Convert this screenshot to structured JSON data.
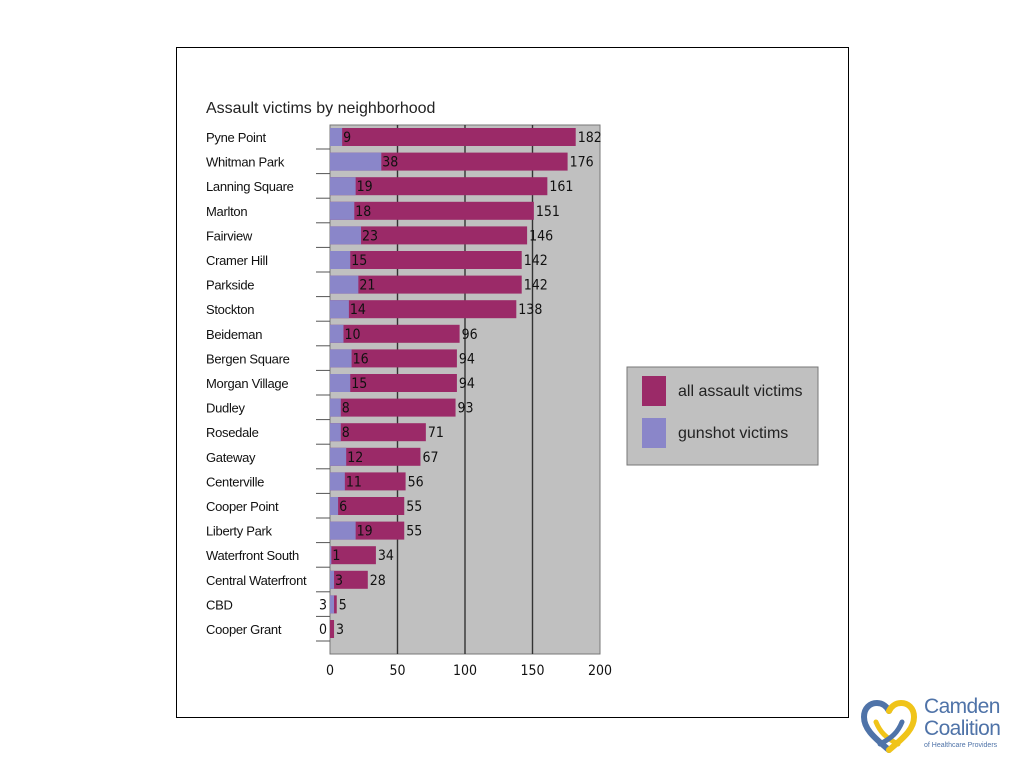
{
  "chart_data": {
    "type": "bar",
    "orientation": "horizontal",
    "title": "Assault victims by neighborhood",
    "categories": [
      "Pyne Point",
      "Whitman Park",
      "Lanning Square",
      "Marlton",
      "Fairview",
      "Cramer Hill",
      "Parkside",
      "Stockton",
      "Beideman",
      "Bergen Square",
      "Morgan Village",
      "Dudley",
      "Rosedale",
      "Gateway",
      "Centerville",
      "Cooper Point",
      "Liberty Park",
      "Waterfront South",
      "Central Waterfront",
      "CBD",
      "Cooper Grant"
    ],
    "series": [
      {
        "name": "all assault victims",
        "color": "#9b2a68",
        "values": [
          182,
          176,
          161,
          151,
          146,
          142,
          142,
          138,
          96,
          94,
          94,
          93,
          71,
          67,
          56,
          55,
          55,
          34,
          28,
          5,
          3
        ]
      },
      {
        "name": "gunshot victims",
        "color": "#8a86c9",
        "values": [
          9,
          38,
          19,
          18,
          23,
          15,
          21,
          14,
          10,
          16,
          15,
          8,
          8,
          12,
          11,
          6,
          19,
          1,
          3,
          3,
          0
        ]
      }
    ],
    "ticks": [
      "0",
      "50",
      "100",
      "150",
      "200"
    ],
    "xlim": [
      0,
      200
    ],
    "grid": true,
    "legend_position": "right",
    "plot_background": "#c0c0c0"
  },
  "logo": {
    "line1": "Camden",
    "line2": "Coalition",
    "line3": "of Healthcare Providers"
  }
}
